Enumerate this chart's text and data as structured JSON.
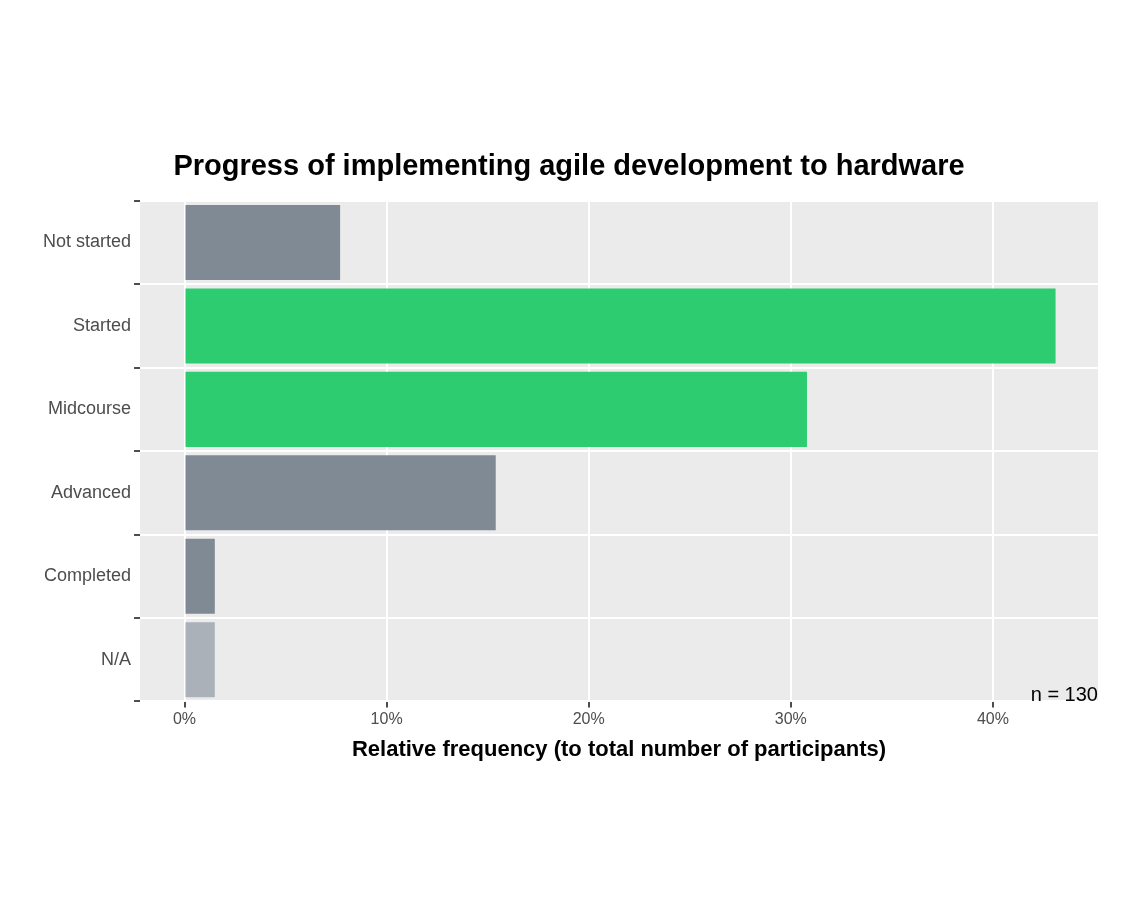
{
  "chart_data": {
    "type": "bar",
    "orientation": "horizontal",
    "title": "Progress of implementing agile development to hardware",
    "xlabel": "Relative frequency (to total number of participants)",
    "categories": [
      "Not started",
      "Started",
      "Midcourse",
      "Advanced",
      "Completed",
      "N/A"
    ],
    "values": [
      7.7,
      43.1,
      30.8,
      15.4,
      1.5,
      1.5
    ],
    "colors": [
      "#808a94",
      "#2ecc71",
      "#2ecc71",
      "#808a94",
      "#808a94",
      "#aab1b9"
    ],
    "xlim": [
      -2.2,
      45.2
    ],
    "xticks": [
      {
        "value": 0,
        "label": "0%"
      },
      {
        "value": 10,
        "label": "10%"
      },
      {
        "value": 20,
        "label": "20%"
      },
      {
        "value": 30,
        "label": "30%"
      },
      {
        "value": 40,
        "label": "40%"
      }
    ],
    "grid": true,
    "legend": false,
    "annotations": [
      "n = 130"
    ]
  }
}
